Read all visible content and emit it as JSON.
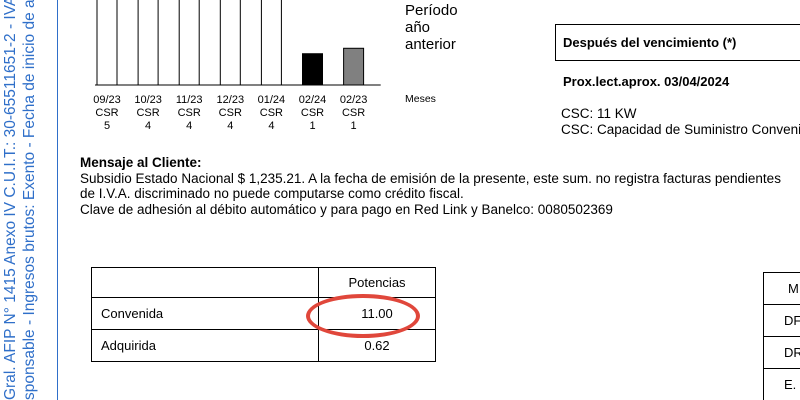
{
  "side_text": [
    "Gral. AFIP N° 1415 Anexo IV C.U.I.T.: 30-65511651-2 - IVA Responsable",
    "sponsable - Ingresos brutos: Exento - Fecha de inicio de actividades"
  ],
  "chart_data": {
    "type": "bar",
    "categories": [
      "09/23",
      "10/23",
      "11/23",
      "12/23",
      "01/24",
      "02/24",
      "02/23"
    ],
    "category_lines": [
      [
        "09/23",
        "CSR",
        "5"
      ],
      [
        "10/23",
        "CSR",
        "4"
      ],
      [
        "11/23",
        "CSR",
        "4"
      ],
      [
        "12/23",
        "CSR",
        "4"
      ],
      [
        "01/24",
        "CSR",
        "4"
      ],
      [
        "02/24",
        "CSR",
        "1"
      ],
      [
        "02/23",
        "CSR",
        "1"
      ]
    ],
    "values": [
      null,
      null,
      null,
      null,
      null,
      0.46,
      0.54
    ],
    "bar_colors": [
      "#ffffff",
      "#ffffff",
      "#ffffff",
      "#ffffff",
      "#ffffff",
      "#000000",
      "#808080"
    ],
    "xlabel": "Meses",
    "legend": [
      "Período",
      "año",
      "anterior"
    ]
  },
  "due": {
    "title": "Después del vencimiento (*)",
    "prox": "Prox.lect.aprox. 03/04/2024",
    "csc_line1": "CSC: 11 KW",
    "csc_line2": "CSC: Capacidad de Suministro Convenida"
  },
  "message": {
    "title": "Mensaje al Cliente:",
    "lines": [
      "Subsidio Estado Nacional $ 1,235.21. A la fecha de emisión de la presente, este sum. no registra facturas pendientes",
      "de I.V.A. discriminado no puede computarse como crédito fiscal.",
      "Clave de adhesión al débito automático y para pago en Red Link y Banelco: 0080502369"
    ]
  },
  "potencias": {
    "header": "Potencias",
    "rows": [
      {
        "label": "Convenida",
        "value": "11.00"
      },
      {
        "label": "Adquirida",
        "value": "0.62"
      }
    ]
  },
  "right_table": [
    "M",
    "DF",
    "DR",
    "E."
  ]
}
